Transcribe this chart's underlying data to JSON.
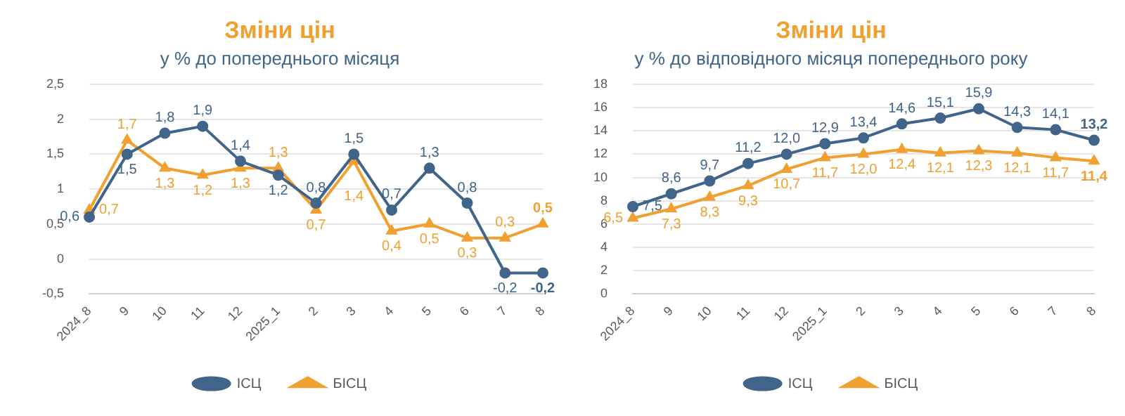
{
  "chart_data": [
    {
      "type": "line",
      "title": "Зміни цін",
      "subtitle": "у % до попереднього місяця",
      "categories": [
        "2024_8",
        "9",
        "10",
        "11",
        "12",
        "2025_1",
        "2",
        "3",
        "4",
        "5",
        "6",
        "7",
        "8"
      ],
      "series": [
        {
          "name": "ІСЦ",
          "color": "#41648a",
          "marker": "circle",
          "values": [
            0.6,
            1.5,
            1.8,
            1.9,
            1.4,
            1.2,
            0.8,
            1.5,
            0.7,
            1.3,
            0.8,
            -0.2,
            -0.2
          ],
          "value_labels": [
            "0,6",
            "1,5",
            "1,8",
            "1,9",
            "1,4",
            "1,2",
            "0,8",
            "1,5",
            "0,7",
            "1,3",
            "0,8",
            "-0,2",
            "-0,2"
          ]
        },
        {
          "name": "БІСЦ",
          "color": "#f0a030",
          "marker": "triangle",
          "values": [
            0.7,
            1.7,
            1.3,
            1.2,
            1.3,
            1.3,
            0.7,
            1.4,
            0.4,
            0.5,
            0.3,
            0.3,
            0.5
          ],
          "value_labels": [
            "0,7",
            "1,7",
            "1,3",
            "1,2",
            "1,3",
            "1,3",
            "0,7",
            "1,4",
            "0,4",
            "0,5",
            "0,3",
            "0,3",
            "0,5"
          ]
        }
      ],
      "ylim": [
        -0.5,
        2.5
      ],
      "yticks": [
        {
          "value": -0.5,
          "label": "-0,5"
        },
        0,
        {
          "value": 0.5,
          "label": "0,5"
        },
        1,
        {
          "value": 1.5,
          "label": "1,5"
        },
        2,
        {
          "value": 2.5,
          "label": "2,5"
        }
      ],
      "grid": "y",
      "legend": "bottom"
    },
    {
      "type": "line",
      "title": "Зміни цін",
      "subtitle": "у % до відповідного місяця попереднього року",
      "categories": [
        "2024_8",
        "9",
        "10",
        "11",
        "12",
        "2025_1",
        "2",
        "3",
        "4",
        "5",
        "6",
        "7",
        "8"
      ],
      "series": [
        {
          "name": "ІСЦ",
          "color": "#41648a",
          "marker": "circle",
          "values": [
            7.5,
            8.6,
            9.7,
            11.2,
            12.0,
            12.9,
            13.4,
            14.6,
            15.1,
            15.9,
            14.3,
            14.1,
            13.2
          ],
          "value_labels": [
            "7,5",
            "8,6",
            "9,7",
            "11,2",
            "12,0",
            "12,9",
            "13,4",
            "14,6",
            "15,1",
            "15,9",
            "14,3",
            "14,1",
            "13,2"
          ]
        },
        {
          "name": "БІСЦ",
          "color": "#f0a030",
          "marker": "triangle",
          "values": [
            6.5,
            7.3,
            8.3,
            9.3,
            10.7,
            11.7,
            12.0,
            12.4,
            12.1,
            12.3,
            12.1,
            11.7,
            11.4
          ],
          "value_labels": [
            "6,5",
            "7,3",
            "8,3",
            "9,3",
            "10,7",
            "11,7",
            "12,0",
            "12,4",
            "12,1",
            "12,3",
            "12,1",
            "11,7",
            "11,4"
          ]
        }
      ],
      "ylim": [
        0,
        18
      ],
      "yticks": [
        0,
        2,
        4,
        6,
        8,
        10,
        12,
        14,
        16,
        18
      ],
      "grid": "y",
      "legend": "bottom"
    }
  ]
}
